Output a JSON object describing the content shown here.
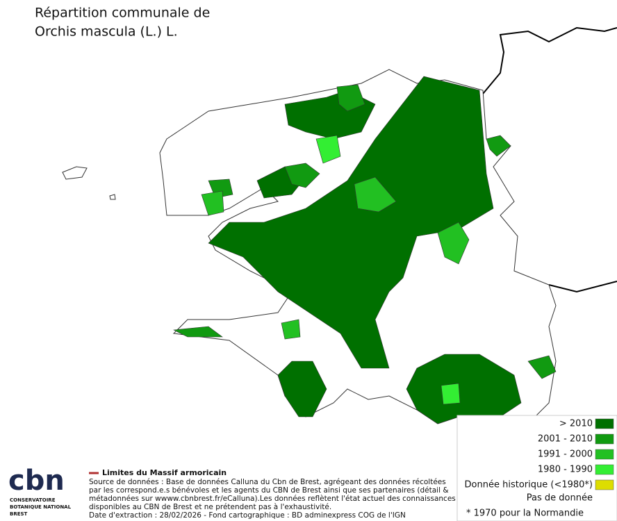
{
  "title": [
    "Répartition communale de",
    "Orchis mascula (L.) L."
  ],
  "legend": [
    {
      "label": "> 2010",
      "color": "#007000"
    },
    {
      "label": "2001 - 2010",
      "color": "#119a11"
    },
    {
      "label": "1991 - 2000",
      "color": "#22c022"
    },
    {
      "label": "1980 - 1990",
      "color": "#33ee33"
    },
    {
      "label": "Donnée historique (<1980*)",
      "color": "#dddd00"
    }
  ],
  "no_data": "Pas de donnée",
  "footnote": "* 1970 pour la Normandie",
  "boundary_legend": "Limites du Massif armoricain",
  "source": [
    "Source de données : Base de données Calluna du Cbn de Brest, agrégeant des données récoltées",
    "par les correspond.e.s bénévoles et les agents du CBN de Brest ainsi que ses partenaires (détail &",
    "métadonnées sur wwww.cbnbrest.fr/eCalluna).Les données reflètent l'état actuel des connaissances",
    "disponibles au CBN de Brest et ne prétendent pas à l'exhaustivité.",
    "Date d'extraction : 28/02/2026 - Fond cartographique : BD adminexpress COG de l'IGN"
  ],
  "logo": {
    "name": "cbn",
    "subtitle": [
      "CONSERVATOIRE",
      "BOTANIQUE NATIONAL",
      "BREST"
    ]
  }
}
